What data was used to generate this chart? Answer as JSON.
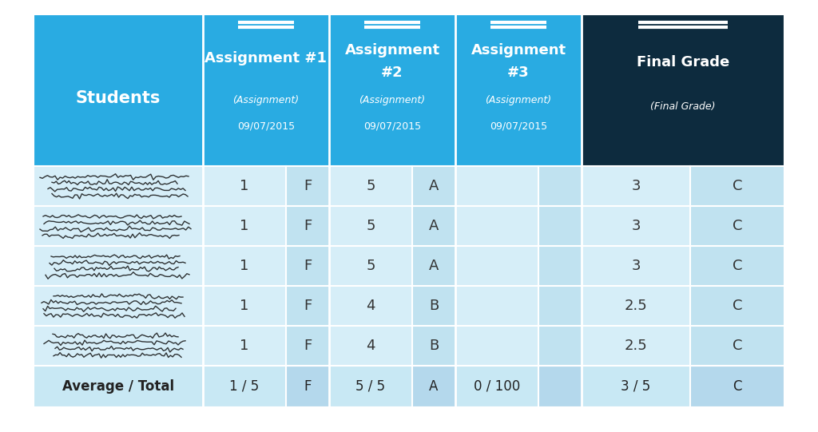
{
  "background_color": "#ffffff",
  "header_bg_blue": "#29ABE2",
  "header_bg_dark": "#0D2B3E",
  "row_bg": "#D6EEF8",
  "row_bg_sub": "#C0E2F0",
  "row_bg_avg": "#C8E8F4",
  "row_bg_avg_sub": "#B4D8EC",
  "rows": [
    {
      "a1_num": "1",
      "a1_let": "F",
      "a2_num": "5",
      "a2_let": "A",
      "a3_num": "",
      "a3_let": "",
      "fg_num": "3",
      "fg_let": "C"
    },
    {
      "a1_num": "1",
      "a1_let": "F",
      "a2_num": "5",
      "a2_let": "A",
      "a3_num": "",
      "a3_let": "",
      "fg_num": "3",
      "fg_let": "C"
    },
    {
      "a1_num": "1",
      "a1_let": "F",
      "a2_num": "5",
      "a2_let": "A",
      "a3_num": "",
      "a3_let": "",
      "fg_num": "3",
      "fg_let": "C"
    },
    {
      "a1_num": "1",
      "a1_let": "F",
      "a2_num": "4",
      "a2_let": "B",
      "a3_num": "",
      "a3_let": "",
      "fg_num": "2.5",
      "fg_let": "C"
    },
    {
      "a1_num": "1",
      "a1_let": "F",
      "a2_num": "4",
      "a2_let": "B",
      "a3_num": "",
      "a3_let": "",
      "fg_num": "2.5",
      "fg_let": "C"
    }
  ],
  "avg_row": {
    "label": "Average / Total",
    "a1": "1 / 5",
    "a1l": "F",
    "a2": "5 / 5",
    "a2l": "A",
    "a3": "0 / 100",
    "a3l": "",
    "fg": "3 / 5",
    "fgl": "C"
  },
  "header_students": "Students",
  "header_a1_line1": "Assignment #1",
  "header_a2_line1": "Assignment",
  "header_a2_line2": "#2",
  "header_a3_line1": "Assignment",
  "header_a3_line2": "#3",
  "header_fg": "Final Grade",
  "header_sub_a1": "(Assignment)\n09/07/2015",
  "header_sub_a2": "(Assignment)\n09/07/2015",
  "header_sub_a3": "(Assignment)\n09/07/2015",
  "header_sub_fg": "(Final Grade)"
}
